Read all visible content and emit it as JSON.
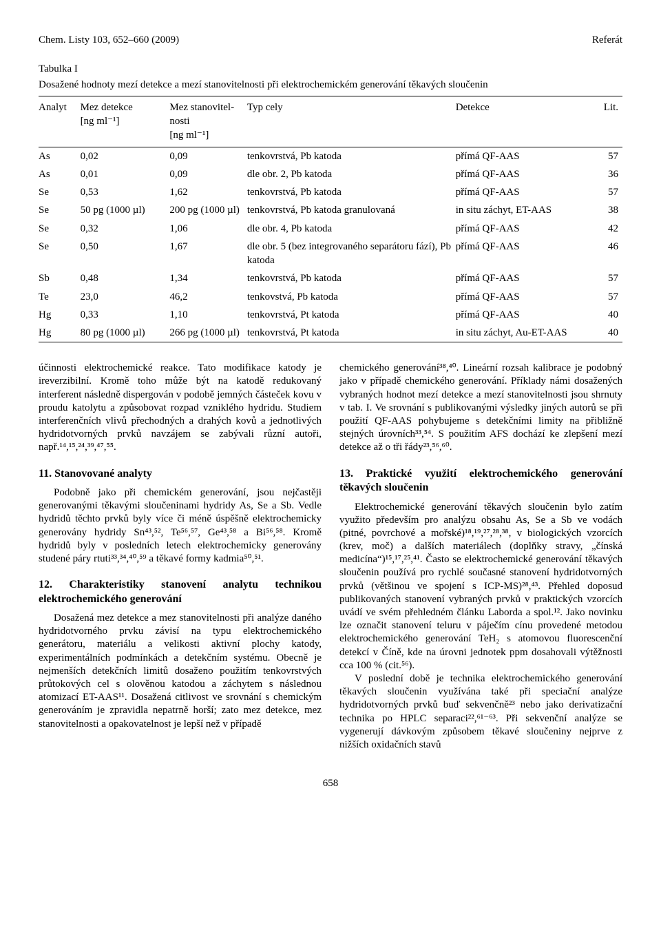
{
  "header": {
    "left": "Chem. Listy 103, 652–660 (2009)",
    "right": "Referát"
  },
  "table": {
    "title": "Tabulka I",
    "caption": "Dosažené hodnoty mezí detekce a mezí stanovitelnosti při elektrochemickém generování těkavých sloučenin",
    "columns": {
      "c1": "Analyt",
      "c2a": "Mez detekce",
      "c2b": "[ng ml⁻¹]",
      "c3a": "Mez stanovitel-",
      "c3b": "nosti",
      "c3c": "[ng ml⁻¹]",
      "c4": "Typ cely",
      "c5": "Detekce",
      "c6": "Lit."
    },
    "rows": [
      {
        "a": "As",
        "m1": "0,02",
        "m2": "0,09",
        "typ": "tenkovrstvá, Pb katoda",
        "det": "přímá QF-AAS",
        "lit": "57"
      },
      {
        "a": "As",
        "m1": "0,01",
        "m2": "0,09",
        "typ": "dle obr. 2, Pb katoda",
        "det": "přímá QF-AAS",
        "lit": "36"
      },
      {
        "a": "Se",
        "m1": "0,53",
        "m2": "1,62",
        "typ": "tenkovrstvá, Pb katoda",
        "det": "přímá QF-AAS",
        "lit": "57"
      },
      {
        "a": "Se",
        "m1": "50 pg (1000 µl)",
        "m2": "200 pg (1000 µl)",
        "typ": "tenkovrstvá, Pb katoda granulovaná",
        "det": "in situ záchyt, ET-AAS",
        "lit": "38"
      },
      {
        "a": "Se",
        "m1": "0,32",
        "m2": "1,06",
        "typ": "dle obr. 4, Pb katoda",
        "det": "přímá QF-AAS",
        "lit": "42"
      },
      {
        "a": "Se",
        "m1": "0,50",
        "m2": "1,67",
        "typ": "dle obr. 5 (bez integrovaného separátoru fází), Pb katoda",
        "det": "přímá QF-AAS",
        "lit": "46"
      },
      {
        "a": "Sb",
        "m1": "0,48",
        "m2": "1,34",
        "typ": "tenkovrstvá, Pb katoda",
        "det": "přímá QF-AAS",
        "lit": "57"
      },
      {
        "a": "Te",
        "m1": "23,0",
        "m2": "46,2",
        "typ": "tenkovstvá, Pb katoda",
        "det": "přímá QF-AAS",
        "lit": "57"
      },
      {
        "a": "Hg",
        "m1": "0,33",
        "m2": "1,10",
        "typ": "tenkovrstvá, Pt katoda",
        "det": "přímá QF-AAS",
        "lit": "40"
      },
      {
        "a": "Hg",
        "m1": "80 pg (1000 µl)",
        "m2": "266 pg (1000 µl)",
        "typ": "tenkovrstvá, Pt katoda",
        "det": "in situ záchyt, Au-ET-AAS",
        "lit": "40"
      }
    ]
  },
  "left_col": {
    "p1": "účinnosti elektrochemické reakce. Tato modifikace katody je ireverzibilní. Kromě toho může být na katodě redukovaný interferent následně dispergován v podobě jemných částeček kovu v proudu katolytu a způsobovat rozpad vzniklého hydridu. Studiem interferenčních vlivů přechodných a drahých kovů a jednotlivých hydridotvorných prvků navzájem se zabývali různí autoři, např.¹⁴,¹⁵,²⁴,³⁹,⁴⁷,⁵⁵.",
    "h11": "11. Stanovované analyty",
    "p11": "Podobně jako při chemickém generování, jsou nejčastěji generovanými těkavými sloučeninami hydridy As, Se a Sb. Vedle hydridů těchto prvků byly více či méně úspěšně elektrochemicky generovány hydridy Sn⁴³,⁵², Te⁵⁶,⁵⁷, Ge⁴³,⁵⁸ a Bi⁵⁶,⁵⁸. Kromě hydridů byly v posledních letech elektrochemicky generovány studené páry rtuti³³,³⁴,⁴⁰,⁵⁹ a těkavé formy kadmia⁵⁰,⁵¹.",
    "h12": "12. Charakteristiky stanovení analytu technikou elektrochemického generování",
    "p12": "Dosažená mez detekce a mez stanovitelnosti při analýze daného hydridotvorného prvku závisí na typu elektrochemického generátoru, materiálu a velikosti aktivní plochy katody, experimentálních podmínkách a detekčním systému. Obecně je nejmenších detekčních limitů dosaženo použitím tenkovrstvých průtokových cel s olověnou katodou a záchytem s následnou atomizací ET-AAS¹¹. Dosažená citlivost ve srovnání s chemickým generováním je zpravidla nepatrně horší; zato mez detekce, mez stanovitelnosti a opakovatelnost je lepší než v případě"
  },
  "right_col": {
    "p1": "chemického generování³⁸,⁴⁰. Lineární rozsah kalibrace je podobný jako v případě chemického generování. Příklady námi dosažených vybraných hodnot mezí detekce a mezí stanovitelnosti jsou shrnuty v tab. I. Ve srovnání s publikovanými výsledky jiných autorů se při použití QF-AAS pohybujeme s detekčními limity na přibližně stejných úrovních³³,⁵⁴. S použitím AFS dochází ke zlepšení mezí detekce až o tři řády²³,⁵⁶,⁶⁰.",
    "h13": "13. Praktické využití elektrochemického generování těkavých sloučenin",
    "p13a": "Elektrochemické generování těkavých sloučenin bylo zatím využito především pro analýzu obsahu As, Se a Sb ve vodách (pitné, povrchové a mořské)¹⁸,¹⁹,²⁷,²⁸,³⁸, v biologických vzorcích (krev, moč) a dalších materiálech (doplňky stravy, „čínská medicína“)¹⁵,¹⁷,²⁵,⁴¹. Často se elektrochemické generování těkavých sloučenin používá pro rychlé současné stanovení hydridotvorných prvků (většinou ve spojení s ICP-MS)²⁸,⁴³. Přehled doposud publikovaných stanovení vybraných prvků v praktických vzorcích uvádí ve svém přehledném článku Laborda a spol.¹². Jako novinku lze označit stanovení teluru v páječím cínu provedené metodou elektrochemického generování TeH₂ s atomovou fluorescenční detekcí v Číně, kde na úrovni jednotek ppm dosahovali výtěžnosti cca 100 % (cit.⁵⁶).",
    "p13b": "V poslední době je technika elektrochemického generování těkavých sloučenin využívána také při speciační analýze hydridotvorných prvků buď sekvenčně²³ nebo jako derivatizační technika po HPLC separaci²²,⁶¹⁻⁶³. Při sekvenční analýze se vygenerují dávkovým způsobem těkavé sloučeniny nejprve z nižších oxidačních stavů"
  },
  "pagenum": "658"
}
